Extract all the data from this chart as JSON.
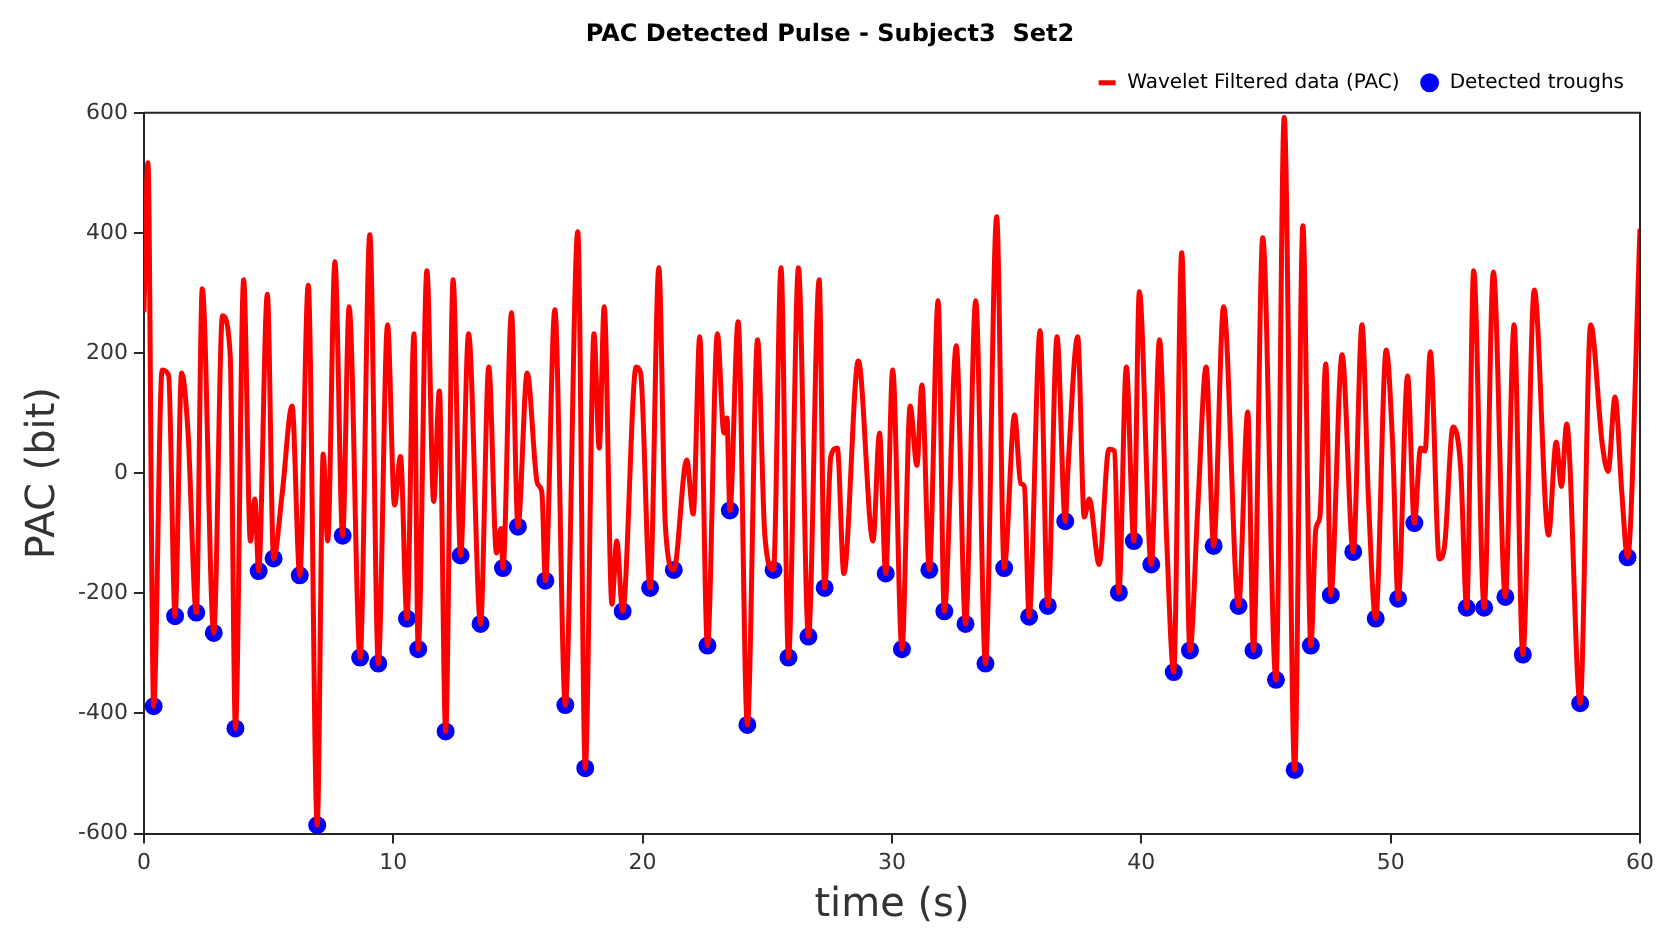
{
  "chart_data": {
    "type": "line",
    "title": "PAC Detected Pulse - Subject3  Set2",
    "xlabel": "time (s)",
    "ylabel": "PAC (bit)",
    "xlim": [
      0,
      60
    ],
    "ylim": [
      -600,
      600
    ],
    "xticks": [
      0,
      10,
      20,
      30,
      40,
      50,
      60
    ],
    "yticks": [
      -600,
      -400,
      -200,
      0,
      200,
      400,
      600
    ],
    "grid": false,
    "legend": "top right",
    "series": [
      {
        "name": "Wavelet Filtered data (PAC)",
        "type": "line",
        "color": "#ff0000",
        "line_style": "solid",
        "marker": "none",
        "x": [
          0,
          0.16,
          0.39,
          0.73,
          0.99,
          1.25,
          1.51,
          1.77,
          2.1,
          2.34,
          2.8,
          3.15,
          3.46,
          3.67,
          4.0,
          4.27,
          4.45,
          4.6,
          4.95,
          5.2,
          5.55,
          5.94,
          6.25,
          6.59,
          6.95,
          7.19,
          7.37,
          7.66,
          7.97,
          8.23,
          8.67,
          9.06,
          9.4,
          9.77,
          10.05,
          10.29,
          10.55,
          10.83,
          11.0,
          11.35,
          11.62,
          11.85,
          12.1,
          12.4,
          12.7,
          13.02,
          13.5,
          13.83,
          14.14,
          14.32,
          14.4,
          14.74,
          15.0,
          15.37,
          15.78,
          15.96,
          16.1,
          16.48,
          16.9,
          17.4,
          17.7,
          18.05,
          18.26,
          18.46,
          18.77,
          18.96,
          19.2,
          19.74,
          19.92,
          20.3,
          20.65,
          20.91,
          21.25,
          21.77,
          22.03,
          22.29,
          22.6,
          23.0,
          23.26,
          23.38,
          23.5,
          23.83,
          24.2,
          24.61,
          24.9,
          25.25,
          25.55,
          25.85,
          26.25,
          26.65,
          27.08,
          27.3,
          27.55,
          27.81,
          28.07,
          28.65,
          29.24,
          29.5,
          29.75,
          30.03,
          30.4,
          30.73,
          31.0,
          31.2,
          31.5,
          31.85,
          32.1,
          32.58,
          32.95,
          33.36,
          33.75,
          34.2,
          34.5,
          34.92,
          35.16,
          35.31,
          35.5,
          35.94,
          36.25,
          36.62,
          36.95,
          37.06,
          37.45,
          37.71,
          37.91,
          38.31,
          38.7,
          38.93,
          39.1,
          39.4,
          39.7,
          39.92,
          40.4,
          40.73,
          41.02,
          41.3,
          41.62,
          41.95,
          42.27,
          42.6,
          42.9,
          43.3,
          43.9,
          44.27,
          44.5,
          44.87,
          45.4,
          45.73,
          46.15,
          46.48,
          46.8,
          47.0,
          47.16,
          47.4,
          47.6,
          48.05,
          48.5,
          48.85,
          49.11,
          49.4,
          49.82,
          50.08,
          50.3,
          50.68,
          50.95,
          51.2,
          51.38,
          51.59,
          51.95,
          52.16,
          52.5,
          52.81,
          53.05,
          53.33,
          53.75,
          54.12,
          54.6,
          54.95,
          55.3,
          55.76,
          56.33,
          56.64,
          56.85,
          57.06,
          57.6,
          58.02,
          58.49,
          58.72,
          59.0,
          59.27,
          59.5,
          60
        ],
        "values": [
          268,
          517,
          -388,
          172,
          163,
          -238,
          167,
          67,
          -232,
          307,
          -266,
          262,
          197,
          -425,
          322,
          -113,
          -43,
          -163,
          298,
          -142,
          -32,
          112,
          -170,
          313,
          -586,
          32,
          -113,
          352,
          -104,
          277,
          -307,
          397,
          -317,
          247,
          -53,
          28,
          -242,
          232,
          -293,
          337,
          -47,
          137,
          -430,
          322,
          -137,
          232,
          -251,
          177,
          -133,
          -92,
          -158,
          267,
          -89,
          167,
          -17,
          -32,
          -179,
          272,
          -386,
          402,
          -491,
          232,
          42,
          277,
          -218,
          -113,
          -230,
          177,
          167,
          -191,
          342,
          -86,
          -161,
          22,
          -68,
          227,
          -287,
          232,
          67,
          92,
          -62,
          252,
          -419,
          222,
          -103,
          -161,
          342,
          -307,
          342,
          -272,
          322,
          -191,
          28,
          42,
          -167,
          187,
          -113,
          67,
          -167,
          172,
          -293,
          112,
          13,
          147,
          -161,
          287,
          -230,
          212,
          -251,
          287,
          -317,
          427,
          -158,
          97,
          -17,
          -22,
          -239,
          237,
          -221,
          227,
          -80,
          7,
          227,
          -73,
          -43,
          -152,
          40,
          37,
          -199,
          177,
          -113,
          302,
          -152,
          222,
          -113,
          -331,
          367,
          -295,
          -53,
          177,
          -121,
          277,
          -221,
          102,
          -295,
          392,
          -344,
          592,
          -494,
          412,
          -287,
          -92,
          -73,
          182,
          -203,
          197,
          -131,
          247,
          -43,
          -242,
          205,
          47,
          -209,
          162,
          -83,
          42,
          37,
          202,
          -143,
          -122,
          77,
          7,
          -224,
          337,
          -224,
          335,
          -206,
          247,
          -302,
          305,
          -103,
          52,
          -22,
          82,
          -383,
          247,
          47,
          3,
          127,
          -32,
          -140,
          407
        ]
      },
      {
        "name": "Detected troughs",
        "type": "scatter",
        "color": "#0000ff",
        "marker": "circle",
        "x": [
          0.39,
          1.25,
          2.1,
          2.8,
          3.67,
          4.6,
          5.2,
          6.25,
          6.95,
          7.97,
          8.67,
          9.4,
          10.55,
          11.0,
          12.1,
          12.7,
          13.5,
          14.4,
          15.0,
          16.1,
          16.9,
          17.7,
          19.2,
          20.3,
          21.25,
          22.6,
          23.5,
          24.2,
          25.25,
          25.85,
          26.65,
          27.3,
          29.75,
          30.4,
          31.5,
          32.1,
          32.95,
          33.75,
          34.5,
          35.5,
          36.25,
          36.95,
          39.1,
          39.7,
          40.4,
          41.3,
          41.95,
          42.9,
          43.9,
          44.5,
          45.4,
          46.15,
          46.8,
          47.6,
          48.5,
          49.4,
          50.3,
          50.95,
          53.05,
          53.75,
          54.6,
          55.3,
          57.6,
          59.5
        ],
        "values": [
          -388,
          -238,
          -232,
          -266,
          -425,
          -163,
          -142,
          -170,
          -586,
          -104,
          -307,
          -317,
          -242,
          -293,
          -430,
          -137,
          -251,
          -158,
          -89,
          -179,
          -386,
          -491,
          -230,
          -191,
          -161,
          -287,
          -62,
          -419,
          -161,
          -307,
          -272,
          -191,
          -167,
          -293,
          -161,
          -230,
          -251,
          -317,
          -158,
          -239,
          -221,
          -80,
          -199,
          -113,
          -152,
          -331,
          -295,
          -121,
          -221,
          -295,
          -344,
          -494,
          -287,
          -203,
          -131,
          -242,
          -209,
          -83,
          -224,
          -224,
          -206,
          -302,
          -383,
          -140
        ]
      }
    ]
  }
}
